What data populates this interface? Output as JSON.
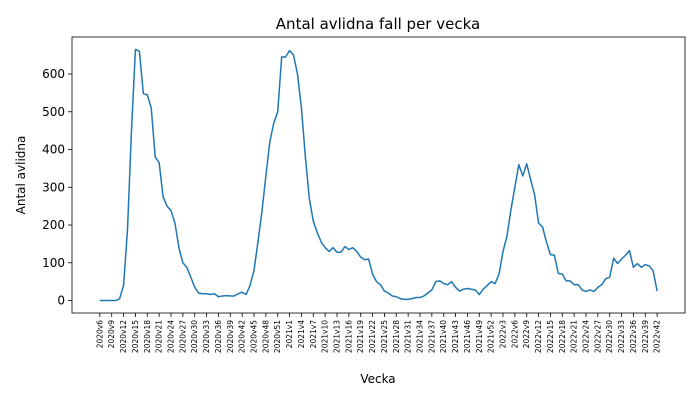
{
  "chart_data": {
    "type": "line",
    "title": "Antal avlidna fall per vecka",
    "xlabel": "Vecka",
    "ylabel": "Antal avlidna",
    "categories": [
      "2020v6",
      null,
      null,
      "2020v9",
      null,
      null,
      "2020v12",
      null,
      null,
      "2020v15",
      null,
      null,
      "2020v18",
      null,
      null,
      "2020v21",
      null,
      null,
      "2020v24",
      null,
      null,
      "2020v27",
      null,
      null,
      "2020v30",
      null,
      null,
      "2020v33",
      null,
      null,
      "2020v36",
      null,
      null,
      "2020v39",
      null,
      null,
      "2020v42",
      null,
      null,
      "2020v45",
      null,
      null,
      "2020v48",
      null,
      null,
      "2020v51",
      null,
      null,
      "2021v1",
      null,
      null,
      "2021v4",
      null,
      null,
      "2021v7",
      null,
      null,
      "2021v10",
      null,
      null,
      "2021v13",
      null,
      null,
      "2021v16",
      null,
      null,
      "2021v19",
      null,
      null,
      "2021v22",
      null,
      null,
      "2021v25",
      null,
      null,
      "2021v28",
      null,
      null,
      "2021v31",
      null,
      null,
      "2021v34",
      null,
      null,
      "2021v37",
      null,
      null,
      "2021v40",
      null,
      null,
      "2021v43",
      null,
      null,
      "2021v46",
      null,
      null,
      "2021v49",
      null,
      null,
      "2021v52",
      null,
      null,
      "2022v3",
      null,
      null,
      "2022v6",
      null,
      null,
      "2022v9",
      null,
      null,
      "2022v12",
      null,
      null,
      "2022v15",
      null,
      null,
      "2022v18",
      null,
      null,
      "2022v21",
      null,
      null,
      "2022v24",
      null,
      null,
      "2022v27",
      null,
      null,
      "2022v30",
      null,
      null,
      "2022v33",
      null,
      null,
      "2022v36",
      null,
      null,
      "2022v39",
      null,
      null,
      "2022v42"
    ],
    "values": [
      0,
      0,
      0,
      0,
      0,
      5,
      40,
      190,
      450,
      665,
      660,
      548,
      545,
      510,
      380,
      365,
      275,
      250,
      238,
      205,
      140,
      100,
      88,
      62,
      35,
      20,
      18,
      18,
      16,
      18,
      10,
      12,
      13,
      12,
      12,
      18,
      22,
      16,
      40,
      80,
      155,
      235,
      330,
      420,
      470,
      500,
      645,
      645,
      662,
      650,
      600,
      510,
      380,
      270,
      210,
      180,
      155,
      140,
      130,
      140,
      128,
      128,
      143,
      135,
      140,
      130,
      115,
      108,
      110,
      70,
      50,
      42,
      25,
      20,
      12,
      10,
      5,
      3,
      3,
      5,
      8,
      8,
      12,
      20,
      28,
      50,
      52,
      45,
      42,
      50,
      35,
      25,
      30,
      32,
      30,
      28,
      16,
      30,
      40,
      50,
      45,
      70,
      130,
      170,
      240,
      300,
      360,
      330,
      362,
      320,
      280,
      205,
      195,
      155,
      122,
      120,
      72,
      70,
      52,
      52,
      42,
      42,
      28,
      24,
      28,
      24,
      35,
      42,
      58,
      62,
      112,
      98,
      110,
      120,
      132,
      88,
      98,
      88,
      95,
      92,
      78,
      25
    ],
    "color": "#1f77b4",
    "ylim": [
      -33,
      698
    ],
    "yticks": [
      0,
      100,
      200,
      300,
      400,
      500,
      600
    ],
    "grid": false
  }
}
